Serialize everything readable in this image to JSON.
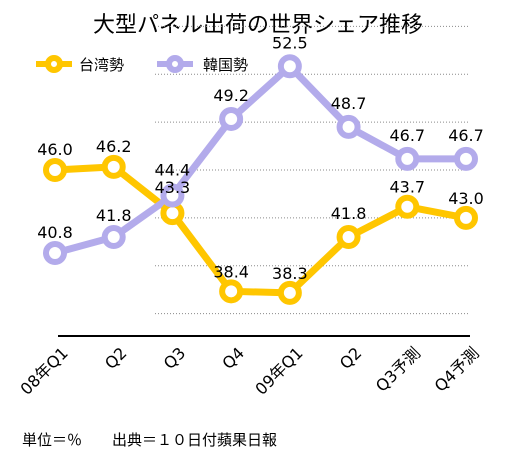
{
  "chart_data": {
    "type": "line",
    "title": "大型パネル出荷の世界シェア推移",
    "categories": [
      "08年Q1",
      "Q2",
      "Q3",
      "Q4",
      "09年Q1",
      "Q2",
      "Q3予測",
      "Q4予測"
    ],
    "series": [
      {
        "name": "台湾勢",
        "color": "#FFC600",
        "values": [
          46.0,
          46.2,
          43.3,
          38.4,
          38.3,
          41.8,
          43.7,
          43.0
        ],
        "labels": [
          "46.0",
          "46.2",
          "43.3",
          "38.4",
          "38.3",
          "41.8",
          "43.7",
          "43.0"
        ]
      },
      {
        "name": "韓国勢",
        "color": "#B3ABEB",
        "values": [
          40.8,
          41.8,
          44.4,
          49.2,
          52.5,
          48.7,
          46.7,
          46.7
        ],
        "labels": [
          "40.8",
          "41.8",
          "44.4",
          "49.2",
          "52.5",
          "48.7",
          "46.7",
          "46.7"
        ]
      }
    ],
    "ylim": [
      35.6,
      55.4
    ],
    "gridlines": [
      37,
      40,
      43,
      46,
      49,
      52,
      55
    ],
    "grid": "horizontal dotted",
    "legend": "top-left",
    "footer": "単位＝％　　出典＝１０日付蘋果日報"
  }
}
